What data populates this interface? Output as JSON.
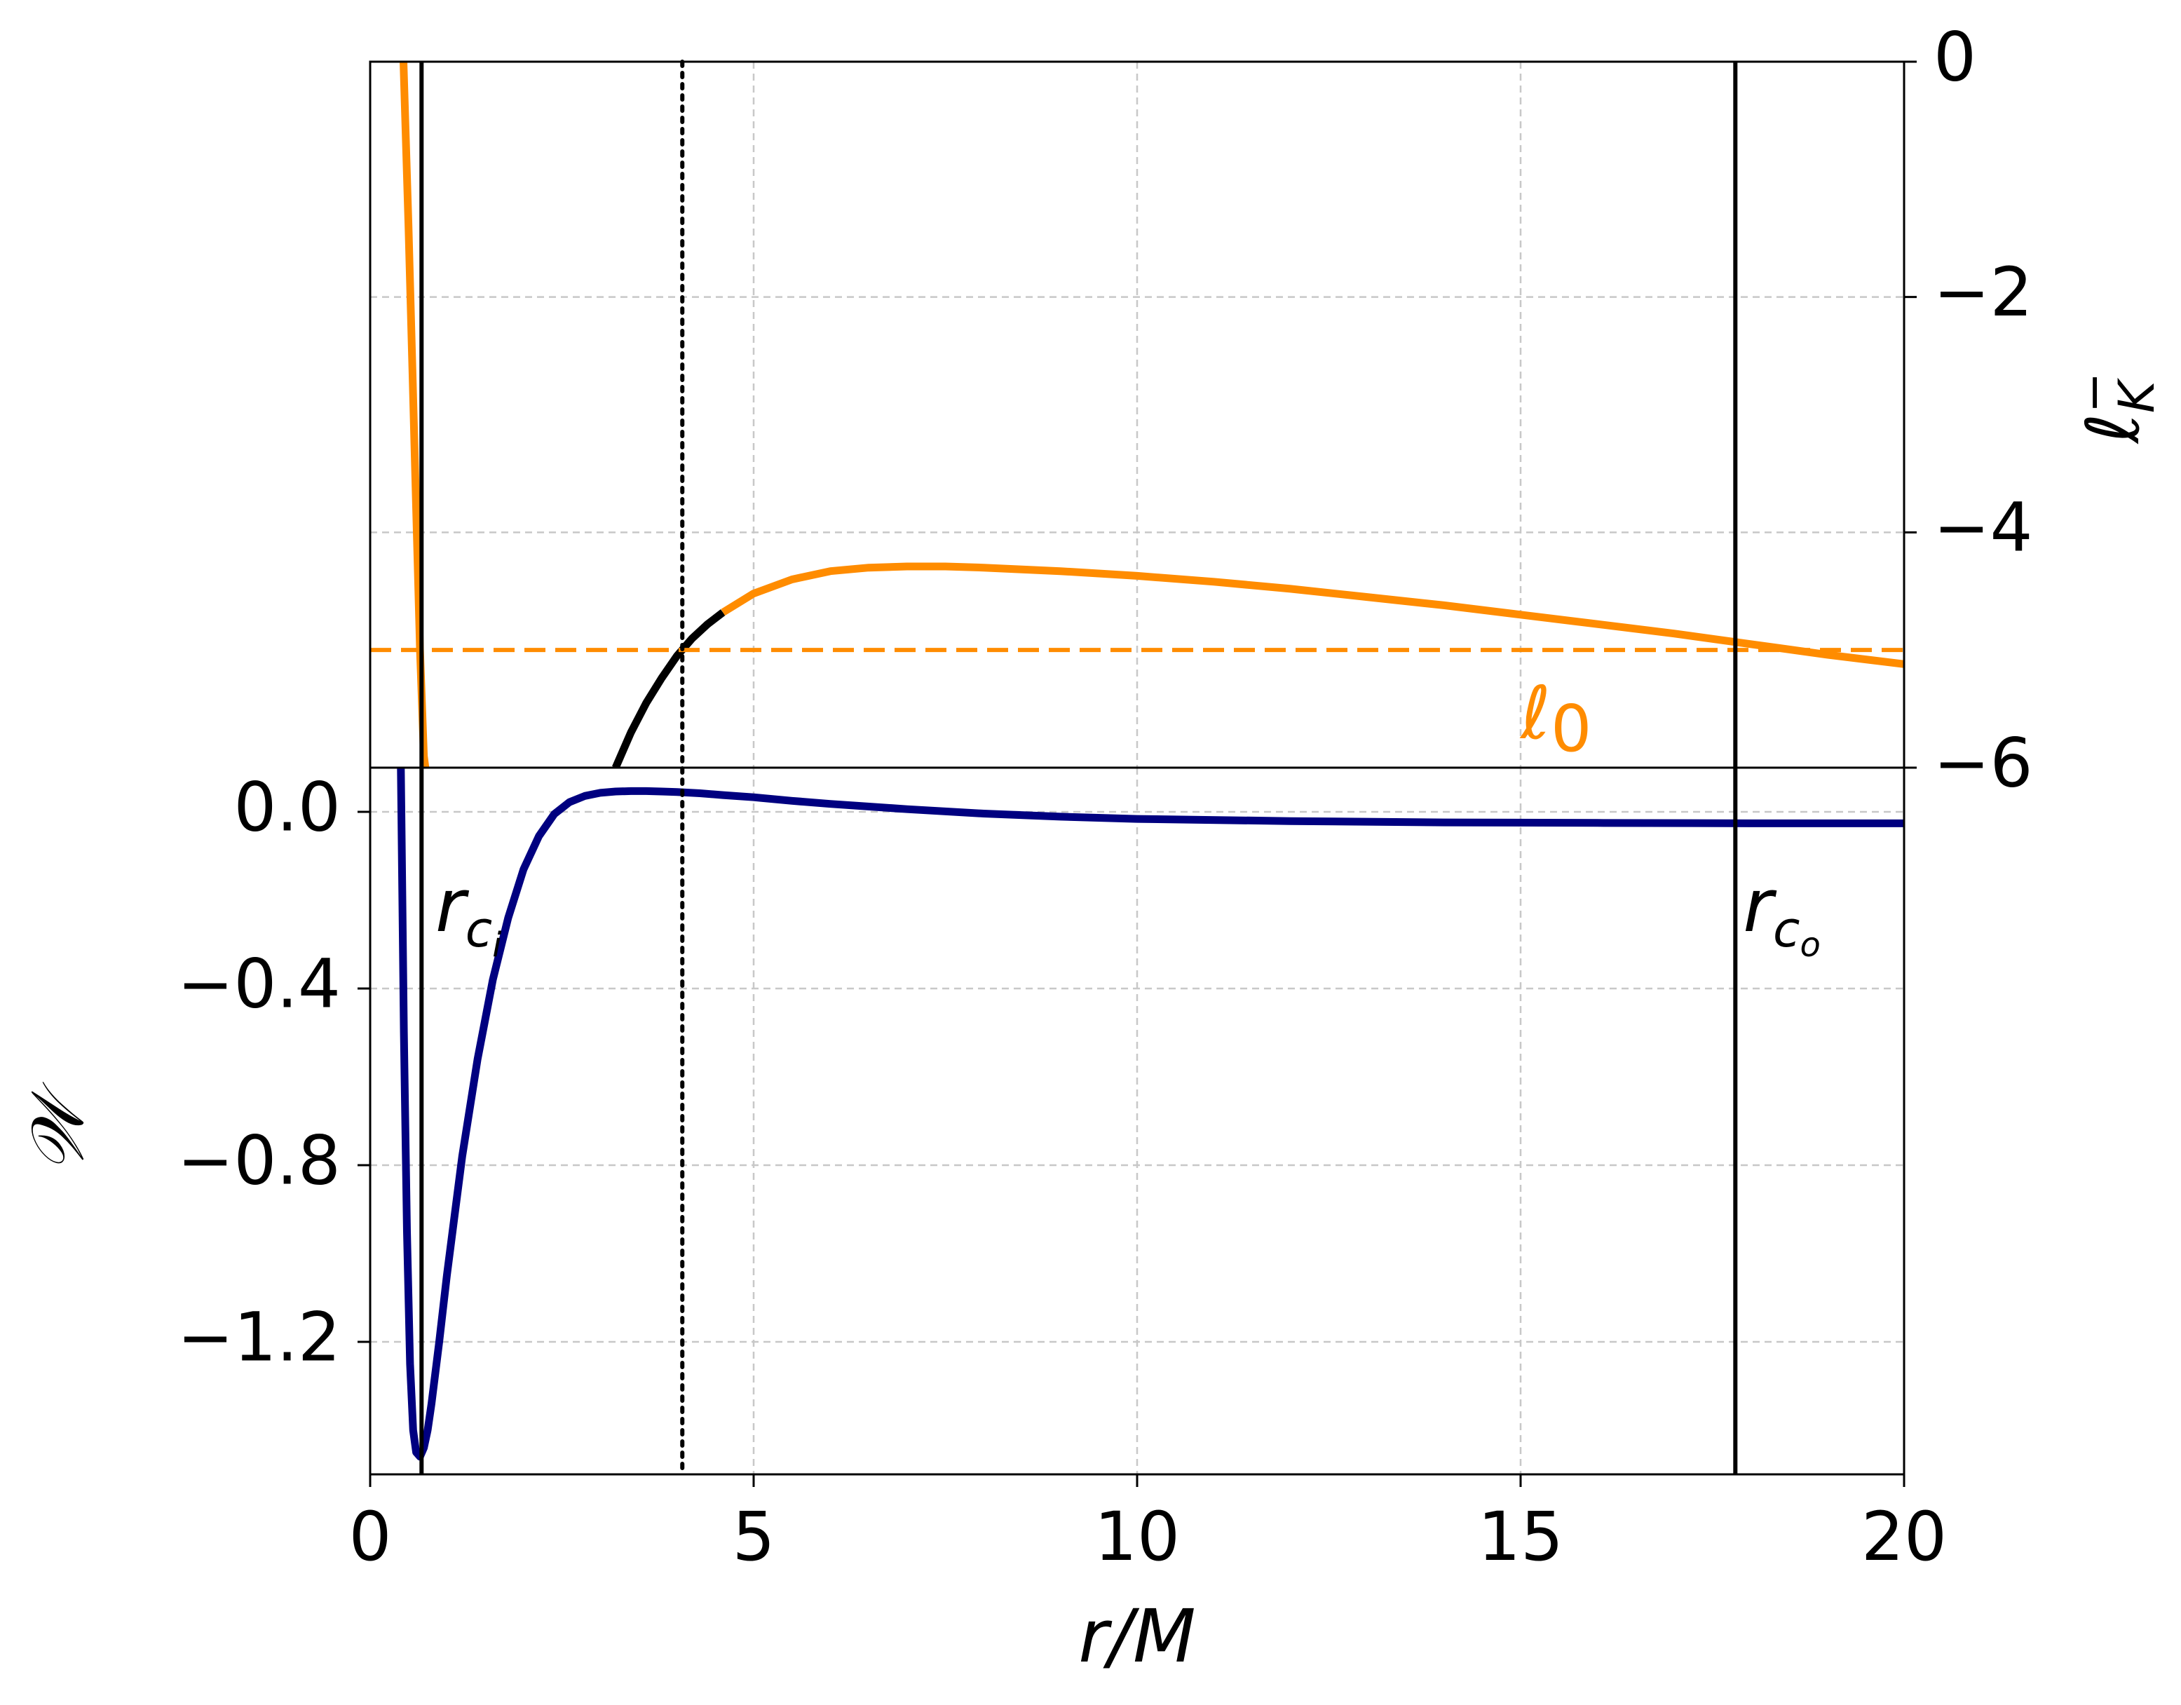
{
  "chart_data": [
    {
      "type": "line",
      "panel": "top",
      "xlim": [
        0,
        20
      ],
      "ylim": [
        -6,
        0
      ],
      "y_axis_side": "right",
      "ylabel": "ℓK−",
      "ylabel_parts": {
        "base": "ℓ",
        "sub": "K",
        "sup": "−"
      },
      "yticks": [
        0,
        -2,
        -4,
        -6
      ],
      "ytick_labels": [
        "0",
        "−2",
        "−4",
        "−6"
      ],
      "grid": true,
      "series": [
        {
          "color": "#ff8c00",
          "x": [
            0.43,
            0.5,
            0.55,
            0.6,
            0.65,
            0.7,
            0.72
          ],
          "y": [
            0.1,
            -1.4,
            -2.6,
            -3.8,
            -5.0,
            -5.9,
            -6.0
          ]
        },
        {
          "color": "#000000",
          "x": [
            3.2,
            3.4,
            3.6,
            3.8,
            4.0,
            4.2,
            4.4,
            4.6
          ],
          "y": [
            -6.0,
            -5.7,
            -5.45,
            -5.24,
            -5.05,
            -4.9,
            -4.78,
            -4.68
          ]
        },
        {
          "color": "#ff8c00",
          "x": [
            4.6,
            5.0,
            5.5,
            6.0,
            6.5,
            7.0,
            7.5,
            8.0,
            9.0,
            10.0,
            11.0,
            12.0,
            13.0,
            14.0,
            15.0,
            16.0,
            17.0,
            18.0,
            19.0,
            20.0
          ],
          "y": [
            -4.68,
            -4.52,
            -4.4,
            -4.33,
            -4.3,
            -4.29,
            -4.29,
            -4.3,
            -4.33,
            -4.37,
            -4.42,
            -4.48,
            -4.55,
            -4.62,
            -4.7,
            -4.78,
            -4.86,
            -4.95,
            -5.04,
            -5.12
          ]
        }
      ],
      "hlines": [
        {
          "y": -5.0,
          "color": "#ff8c00",
          "style": "dashed",
          "label": "ℓ0",
          "label_base": "ℓ",
          "label_sub": "0",
          "label_x": 15.0,
          "label_y": -5.75
        }
      ]
    },
    {
      "type": "line",
      "panel": "bottom",
      "xlim": [
        0,
        20
      ],
      "ylim": [
        -1.5,
        0.1
      ],
      "xlabel": "r/M",
      "ylabel": "𝒲",
      "xticks": [
        0,
        5,
        10,
        15,
        20
      ],
      "xtick_labels": [
        "0",
        "5",
        "10",
        "15",
        "20"
      ],
      "yticks": [
        0.0,
        -0.4,
        -0.8,
        -1.2
      ],
      "ytick_labels": [
        "0.0",
        "−0.4",
        "−0.8",
        "−1.2"
      ],
      "grid": true,
      "series": [
        {
          "color": "#000080",
          "x": [
            0.4,
            0.44,
            0.48,
            0.52,
            0.56,
            0.6,
            0.65,
            0.7,
            0.75,
            0.8,
            0.9,
            1.0,
            1.2,
            1.4,
            1.6,
            1.8,
            2.0,
            2.2,
            2.4,
            2.6,
            2.8,
            3.0,
            3.2,
            3.4,
            3.6,
            3.8,
            4.0,
            4.3,
            4.6,
            5.0,
            5.5,
            6.0,
            7.0,
            8.0,
            9.0,
            10.0,
            12.0,
            14.0,
            16.0,
            18.0,
            20.0
          ],
          "y": [
            0.1,
            -0.5,
            -0.95,
            -1.25,
            -1.4,
            -1.45,
            -1.46,
            -1.44,
            -1.4,
            -1.34,
            -1.2,
            -1.05,
            -0.78,
            -0.56,
            -0.38,
            -0.24,
            -0.13,
            -0.055,
            -0.005,
            0.022,
            0.036,
            0.043,
            0.046,
            0.047,
            0.047,
            0.046,
            0.045,
            0.042,
            0.038,
            0.033,
            0.025,
            0.018,
            0.006,
            -0.004,
            -0.011,
            -0.016,
            -0.021,
            -0.024,
            -0.025,
            -0.026,
            -0.026
          ]
        }
      ],
      "annotations": [
        {
          "text": "rci",
          "base": "r",
          "sub": "c",
          "subsub": "i",
          "x": 0.85,
          "y": -0.27
        },
        {
          "text": "rco",
          "base": "r",
          "sub": "c",
          "subsub": "o",
          "x": 17.9,
          "y": -0.27
        }
      ]
    }
  ],
  "vlines": [
    {
      "x": 0.67,
      "style": "solid",
      "color": "#000000"
    },
    {
      "x": 4.07,
      "style": "dotted",
      "color": "#000000"
    },
    {
      "x": 17.8,
      "style": "solid",
      "color": "#000000"
    }
  ]
}
